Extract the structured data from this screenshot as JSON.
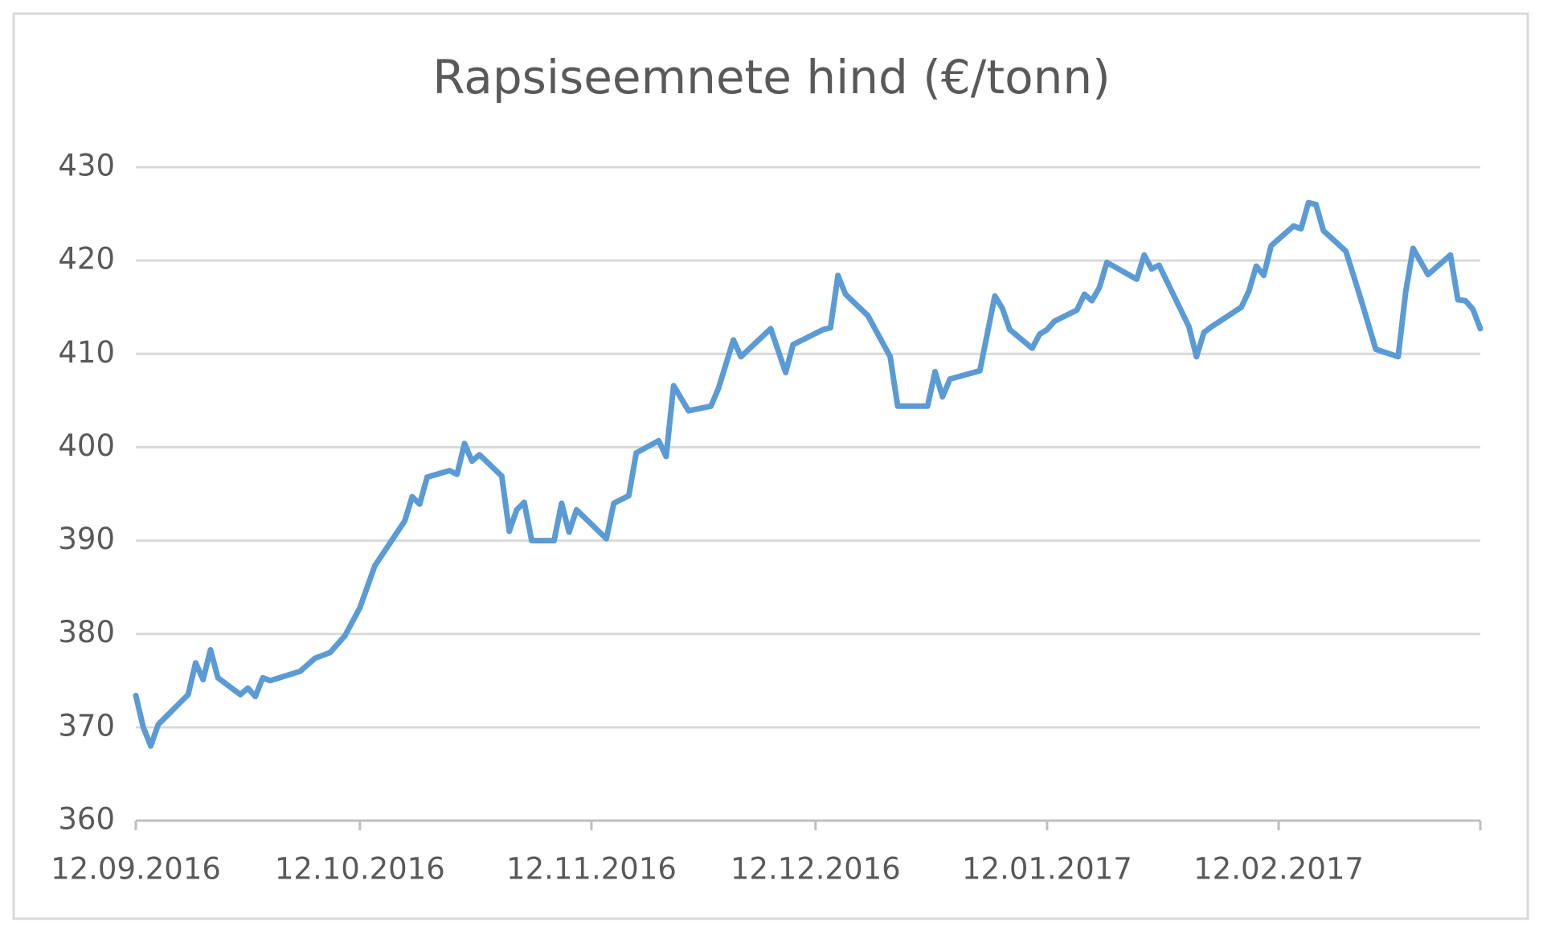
{
  "chart_data": {
    "type": "line",
    "title": "Rapsiseemnete hind (€/tonn)",
    "color": "#5b9bd5",
    "grid": true,
    "x": [
      "12.09.2016",
      "13.09.2016",
      "14.09.2016",
      "15.09.2016",
      "19.09.2016",
      "20.09.2016",
      "21.09.2016",
      "22.09.2016",
      "23.09.2016",
      "26.09.2016",
      "27.09.2016",
      "28.09.2016",
      "29.09.2016",
      "30.09.2016",
      "04.10.2016",
      "06.10.2016",
      "08.10.2016",
      "10.10.2016",
      "12.10.2016",
      "14.10.2016",
      "18.10.2016",
      "19.10.2016",
      "20.10.2016",
      "21.10.2016",
      "24.10.2016",
      "25.10.2016",
      "26.10.2016",
      "27.10.2016",
      "28.10.2016",
      "31.10.2016",
      "01.11.2016",
      "02.11.2016",
      "03.11.2016",
      "04.11.2016",
      "07.11.2016",
      "08.11.2016",
      "09.11.2016",
      "10.11.2016",
      "14.11.2016",
      "15.11.2016",
      "17.11.2016",
      "18.11.2016",
      "21.11.2016",
      "22.11.2016",
      "23.11.2016",
      "25.11.2016",
      "28.11.2016",
      "29.11.2016",
      "01.12.2016",
      "02.12.2016",
      "06.12.2016",
      "08.12.2016",
      "09.12.2016",
      "13.12.2016",
      "14.12.2016",
      "15.12.2016",
      "16.12.2016",
      "19.12.2016",
      "22.12.2016",
      "23.12.2016",
      "27.12.2016",
      "28.12.2016",
      "29.12.2016",
      "30.12.2016",
      "03.01.2017",
      "05.01.2017",
      "06.01.2017",
      "07.01.2017",
      "10.01.2017",
      "11.01.2017",
      "12.01.2017",
      "13.01.2017",
      "16.01.2017",
      "17.01.2017",
      "18.01.2017",
      "19.01.2017",
      "20.01.2017",
      "24.01.2017",
      "25.01.2017",
      "26.01.2017",
      "27.01.2017",
      "31.01.2017",
      "01.02.2017",
      "02.02.2017",
      "03.02.2017",
      "07.02.2017",
      "08.02.2017",
      "09.02.2017",
      "10.02.2017",
      "11.02.2017",
      "14.02.2017",
      "15.02.2017",
      "16.02.2017",
      "17.02.2017",
      "18.02.2017",
      "21.02.2017",
      "23.02.2017",
      "25.02.2017",
      "28.02.2017",
      "01.03.2017",
      "02.03.2017",
      "04.03.2017",
      "07.03.2017",
      "08.03.2017",
      "09.03.2017",
      "10.03.2017",
      "11.03.2017"
    ],
    "values": [
      373.4,
      370,
      368,
      370.3,
      373.5,
      376.9,
      375.1,
      378.3,
      375.3,
      373.5,
      374.2,
      373.3,
      375.3,
      375,
      376,
      377.4,
      378,
      379.8,
      382.8,
      387.3,
      392.1,
      394.7,
      393.9,
      396.8,
      397.5,
      397.1,
      400.4,
      398.5,
      399.2,
      396.9,
      391,
      393.3,
      394.1,
      390,
      390,
      394,
      390.9,
      393.3,
      390.2,
      394,
      394.8,
      399.4,
      400.7,
      399,
      406.6,
      403.9,
      404.4,
      406.3,
      411.5,
      409.7,
      412.7,
      408,
      411,
      412.6,
      412.8,
      418.4,
      416.4,
      414.1,
      409.7,
      404.4,
      404.4,
      408.1,
      405.4,
      407.3,
      408.2,
      416.2,
      414.9,
      412.6,
      410.6,
      412.1,
      412.6,
      413.5,
      414.7,
      416.4,
      415.7,
      417.1,
      419.8,
      418,
      420.6,
      419.1,
      419.5,
      412.9,
      409.7,
      412.3,
      412.9,
      415,
      416.7,
      419.4,
      418.4,
      421.6,
      423.7,
      423.4,
      426.2,
      426,
      423.2,
      421,
      415.9,
      410.5,
      409.7,
      416.6,
      421.3,
      418.5,
      420.6,
      415.8,
      415.7,
      414.8,
      412.7
    ],
    "xlim": [
      "12.09.2016",
      "11.03.2017"
    ],
    "xticks": [
      "12.09.2016",
      "12.10.2016",
      "12.11.2016",
      "12.12.2016",
      "12.01.2017",
      "12.02.2017"
    ],
    "ylim": [
      360,
      430
    ],
    "yticks": [
      360,
      370,
      380,
      390,
      400,
      410,
      420,
      430
    ]
  }
}
